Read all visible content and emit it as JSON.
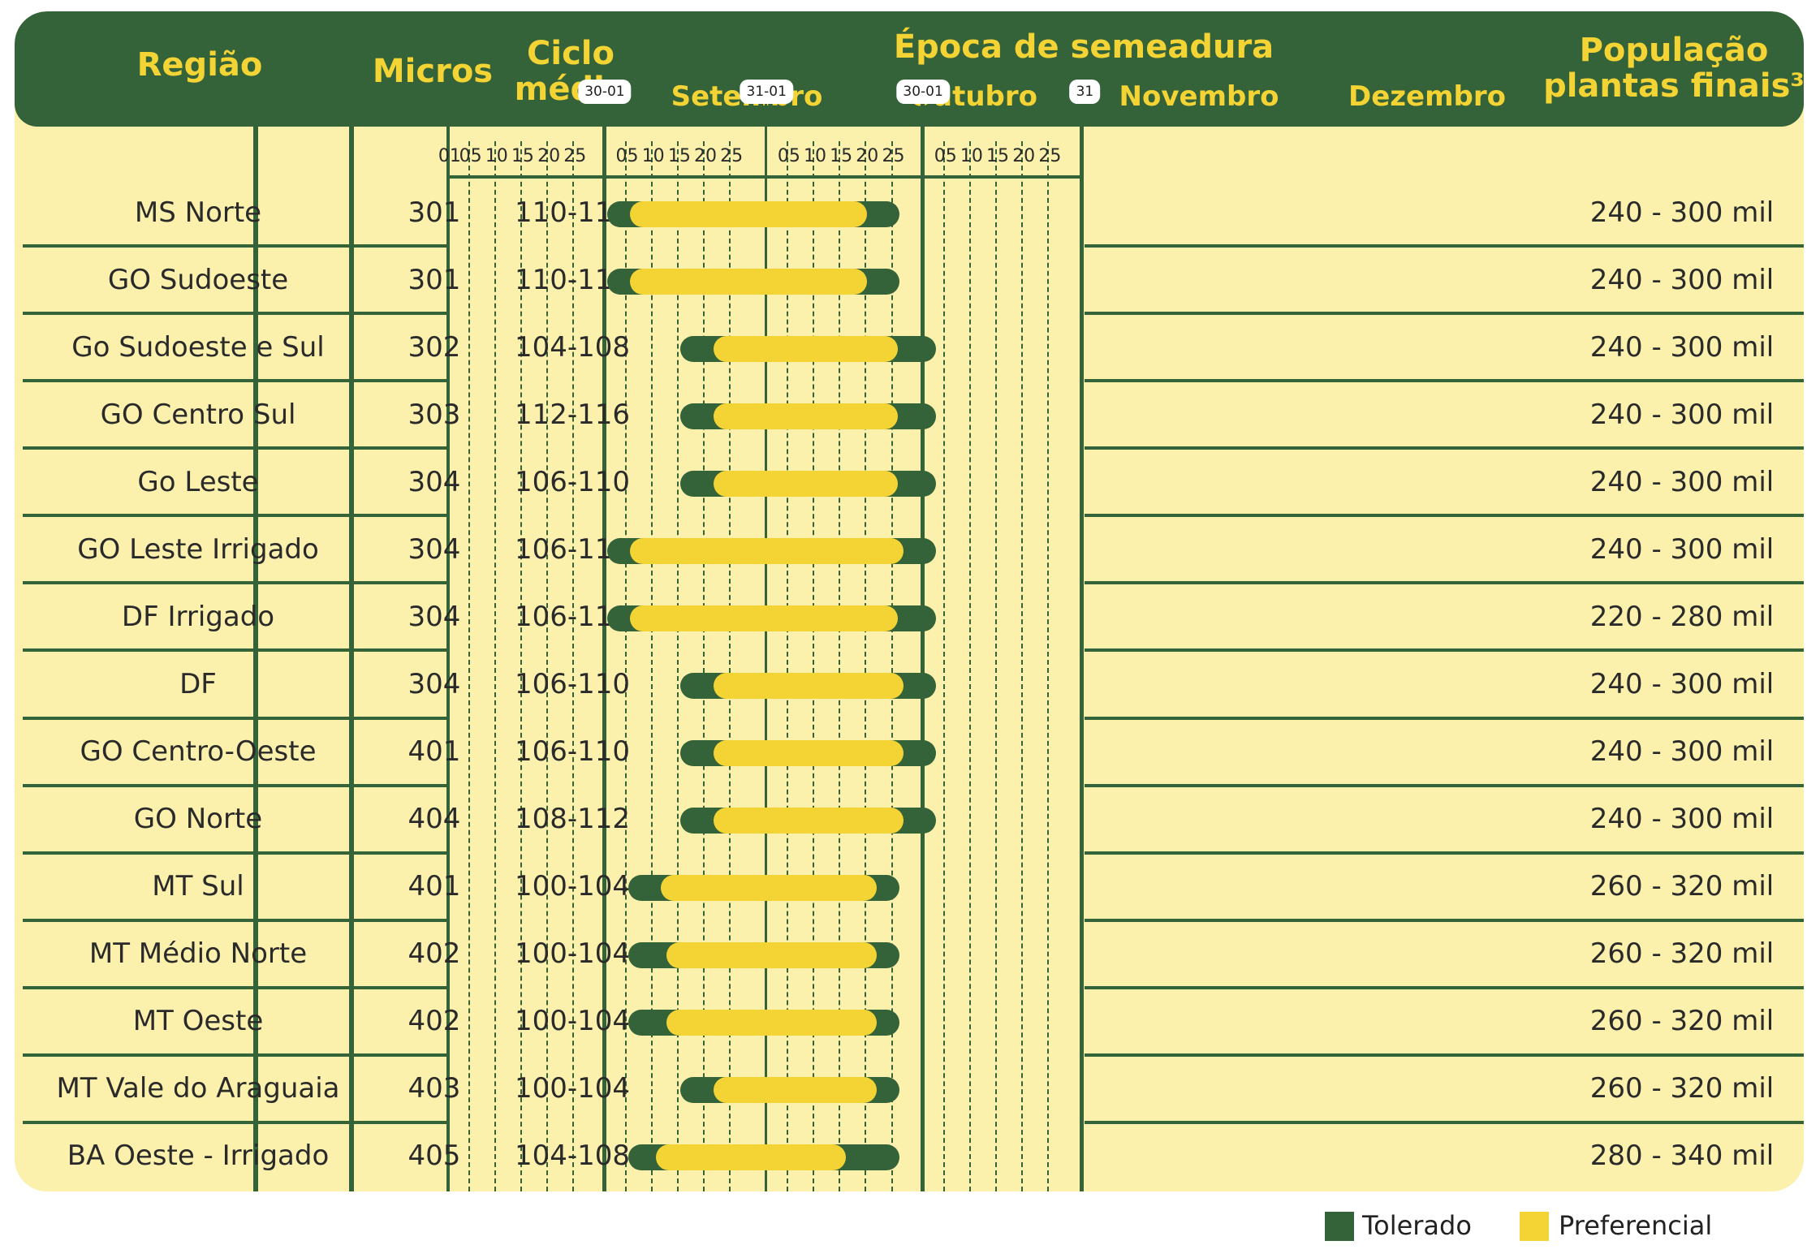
{
  "chart_data": {
    "type": "table",
    "headers": {
      "regiao": "Região",
      "micros": "Micros",
      "ciclo_l1": "Ciclo",
      "ciclo_l2": "médio",
      "epoca": "Época de semeadura",
      "months": [
        "Setembro",
        "Outubro",
        "Novembro",
        "Dezembro"
      ],
      "pop_l1": "População",
      "pop_l2": "plantas finais³"
    },
    "month_end_tags": [
      "30-01",
      "31-01",
      "30-01",
      "31"
    ],
    "day_ticks": [
      "01",
      "05",
      "10",
      "15",
      "20",
      "25"
    ],
    "x_axis_day_range": [
      1,
      122
    ],
    "rows": [
      {
        "regiao": "MS Norte",
        "micros": "301",
        "ciclo": "110-114",
        "populacao": "240 - 300 mil",
        "tolerado": [
          34,
          85
        ],
        "preferencial": [
          38,
          79
        ]
      },
      {
        "regiao": "GO Sudoeste",
        "micros": "301",
        "ciclo": "110-114",
        "populacao": "240 - 300 mil",
        "tolerado": [
          34,
          85
        ],
        "preferencial": [
          38,
          79
        ]
      },
      {
        "regiao": "Go Sudoeste e Sul",
        "micros": "302",
        "ciclo": "104-108",
        "populacao": "240 - 300 mil",
        "tolerado": [
          48,
          92
        ],
        "preferencial": [
          54,
          85
        ]
      },
      {
        "regiao": "GO Centro Sul",
        "micros": "303",
        "ciclo": "112-116",
        "populacao": "240 - 300 mil",
        "tolerado": [
          48,
          92
        ],
        "preferencial": [
          54,
          85
        ]
      },
      {
        "regiao": "Go Leste",
        "micros": "304",
        "ciclo": "106-110",
        "populacao": "240 - 300 mil",
        "tolerado": [
          48,
          92
        ],
        "preferencial": [
          54,
          85
        ]
      },
      {
        "regiao": "GO Leste Irrigado",
        "micros": "304",
        "ciclo": "106-110",
        "populacao": "240 - 300 mil",
        "tolerado": [
          34,
          92
        ],
        "preferencial": [
          38,
          86
        ]
      },
      {
        "regiao": "DF Irrigado",
        "micros": "304",
        "ciclo": "106-110",
        "populacao": "220 - 280 mil",
        "tolerado": [
          34,
          92
        ],
        "preferencial": [
          38,
          85
        ]
      },
      {
        "regiao": "DF",
        "micros": "304",
        "ciclo": "106-110",
        "populacao": "240 - 300 mil",
        "tolerado": [
          48,
          92
        ],
        "preferencial": [
          54,
          86
        ]
      },
      {
        "regiao": "GO  Centro-Oeste",
        "micros": "401",
        "ciclo": "106-110",
        "populacao": "240 - 300 mil",
        "tolerado": [
          48,
          92
        ],
        "preferencial": [
          54,
          86
        ]
      },
      {
        "regiao": "GO Norte",
        "micros": "404",
        "ciclo": "108-112",
        "populacao": "240 - 300 mil",
        "tolerado": [
          48,
          92
        ],
        "preferencial": [
          54,
          86
        ]
      },
      {
        "regiao": "MT Sul",
        "micros": "401",
        "ciclo": "100-104",
        "populacao": "260 - 320 mil",
        "tolerado": [
          38,
          85
        ],
        "preferencial": [
          44,
          81
        ]
      },
      {
        "regiao": "MT Médio Norte",
        "micros": "402",
        "ciclo": "100-104",
        "populacao": "260 - 320 mil",
        "tolerado": [
          38,
          85
        ],
        "preferencial": [
          45,
          81
        ]
      },
      {
        "regiao": "MT Oeste",
        "micros": "402",
        "ciclo": "100-104",
        "populacao": "260 - 320 mil",
        "tolerado": [
          38,
          85
        ],
        "preferencial": [
          45,
          81
        ]
      },
      {
        "regiao": "MT Vale do Araguaia",
        "micros": "403",
        "ciclo": "100-104",
        "populacao": "260 - 320 mil",
        "tolerado": [
          48,
          85
        ],
        "preferencial": [
          54,
          81
        ]
      },
      {
        "regiao": "BA Oeste - Irrigado",
        "micros": "405",
        "ciclo": "104-108",
        "populacao": "280 - 340 mil",
        "tolerado": [
          38,
          85
        ],
        "preferencial": [
          43,
          75
        ]
      }
    ],
    "legend": [
      {
        "label": "Tolerado",
        "color": "#356339"
      },
      {
        "label": "Preferencial",
        "color": "#f4d335"
      }
    ],
    "legend_position": "bottom-right"
  },
  "colors": {
    "header_bg": "#356339",
    "header_text": "#f4d335",
    "body_bg": "#fbf1ad",
    "tolerado": "#356339",
    "preferencial": "#f4d335"
  }
}
